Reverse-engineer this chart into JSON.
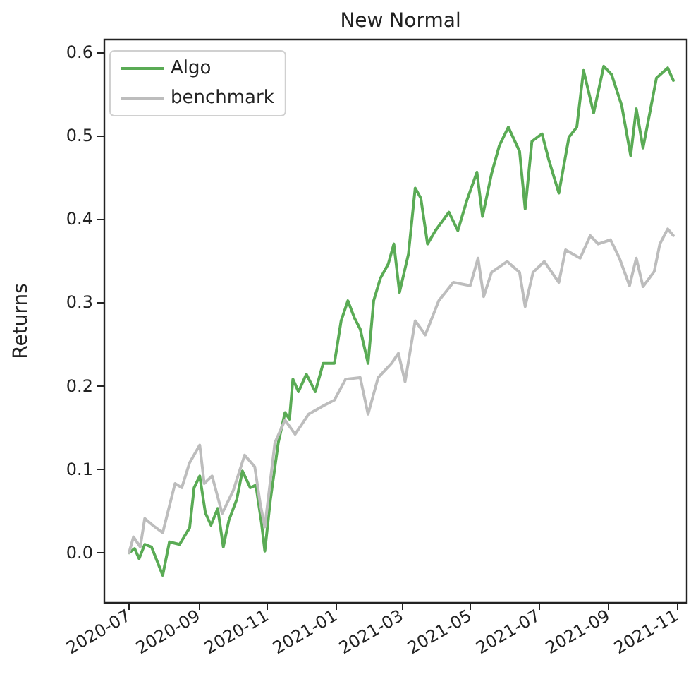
{
  "chart_data": {
    "type": "line",
    "title": "New Normal",
    "ylabel": "Returns",
    "xlim": [
      "2020-06-09",
      "2021-11-10"
    ],
    "xticks": [
      {
        "value": "2020-07-01",
        "label": "2020-07"
      },
      {
        "value": "2020-09-01",
        "label": "2020-09"
      },
      {
        "value": "2020-11-01",
        "label": "2020-11"
      },
      {
        "value": "2021-01-01",
        "label": "2021-01"
      },
      {
        "value": "2021-03-01",
        "label": "2021-03"
      },
      {
        "value": "2021-05-01",
        "label": "2021-05"
      },
      {
        "value": "2021-07-01",
        "label": "2021-07"
      },
      {
        "value": "2021-09-01",
        "label": "2021-09"
      },
      {
        "value": "2021-11-01",
        "label": "2021-11"
      }
    ],
    "ylim": [
      -0.06,
      0.615
    ],
    "yticks": [
      {
        "value": 0,
        "label": "0.0"
      },
      {
        "value": 0.1,
        "label": "0.1"
      },
      {
        "value": 0.2,
        "label": "0.2"
      },
      {
        "value": 0.3,
        "label": "0.3"
      },
      {
        "value": 0.4,
        "label": "0.4"
      },
      {
        "value": 0.5,
        "label": "0.5"
      },
      {
        "value": 0.6,
        "label": "0.6"
      }
    ],
    "grid": false,
    "legend": "top left",
    "marker": "none",
    "line_style": "solid",
    "series": [
      {
        "name": "Algo",
        "color": "#5aab55",
        "x": [
          "2020-07-01",
          "2020-07-06",
          "2020-07-10",
          "2020-07-15",
          "2020-07-21",
          "2020-07-31",
          "2020-08-06",
          "2020-08-15",
          "2020-08-24",
          "2020-08-28",
          "2020-09-02",
          "2020-09-07",
          "2020-09-12",
          "2020-09-18",
          "2020-09-23",
          "2020-09-28",
          "2020-10-05",
          "2020-10-10",
          "2020-10-17",
          "2020-10-22",
          "2020-10-27",
          "2020-10-30",
          "2020-11-04",
          "2020-11-11",
          "2020-11-17",
          "2020-11-21",
          "2020-11-24",
          "2020-11-29",
          "2020-12-06",
          "2020-12-14",
          "2020-12-21",
          "2020-12-31",
          "2021-01-06",
          "2021-01-12",
          "2021-01-18",
          "2021-01-23",
          "2021-01-30",
          "2021-02-04",
          "2021-02-10",
          "2021-02-17",
          "2021-02-22",
          "2021-02-27",
          "2021-03-07",
          "2021-03-13",
          "2021-03-18",
          "2021-03-24",
          "2021-03-31",
          "2021-04-12",
          "2021-04-20",
          "2021-04-28",
          "2021-05-07",
          "2021-05-12",
          "2021-05-20",
          "2021-05-27",
          "2021-06-04",
          "2021-06-14",
          "2021-06-19",
          "2021-06-25",
          "2021-07-04",
          "2021-07-10",
          "2021-07-19",
          "2021-07-28",
          "2021-08-04",
          "2021-08-10",
          "2021-08-19",
          "2021-08-28",
          "2021-09-04",
          "2021-09-13",
          "2021-09-21",
          "2021-09-26",
          "2021-10-02",
          "2021-10-08",
          "2021-10-14",
          "2021-10-24",
          "2021-10-29"
        ],
        "values": [
          0.0,
          0.005,
          -0.007,
          0.01,
          0.007,
          -0.027,
          0.013,
          0.01,
          0.03,
          0.078,
          0.092,
          0.048,
          0.033,
          0.053,
          0.007,
          0.039,
          0.064,
          0.098,
          0.078,
          0.081,
          0.036,
          0.002,
          0.064,
          0.132,
          0.168,
          0.16,
          0.208,
          0.193,
          0.214,
          0.193,
          0.227,
          0.227,
          0.278,
          0.302,
          0.281,
          0.268,
          0.227,
          0.302,
          0.329,
          0.346,
          0.37,
          0.312,
          0.358,
          0.437,
          0.425,
          0.37,
          0.386,
          0.408,
          0.386,
          0.422,
          0.456,
          0.403,
          0.454,
          0.488,
          0.51,
          0.481,
          0.412,
          0.493,
          0.502,
          0.471,
          0.431,
          0.498,
          0.51,
          0.578,
          0.527,
          0.583,
          0.573,
          0.536,
          0.476,
          0.532,
          0.485,
          0.527,
          0.569,
          0.581,
          0.566
        ]
      },
      {
        "name": "benchmark",
        "color": "#bdbdbd",
        "x": [
          "2020-07-01",
          "2020-07-05",
          "2020-07-11",
          "2020-07-15",
          "2020-07-23",
          "2020-07-31",
          "2020-08-11",
          "2020-08-17",
          "2020-08-24",
          "2020-09-02",
          "2020-09-06",
          "2020-09-13",
          "2020-09-22",
          "2020-10-02",
          "2020-10-12",
          "2020-10-21",
          "2020-10-26",
          "2020-10-30",
          "2020-11-08",
          "2020-11-17",
          "2020-11-26",
          "2020-12-08",
          "2020-12-21",
          "2020-12-31",
          "2021-01-10",
          "2021-01-23",
          "2021-01-30",
          "2021-02-08",
          "2021-02-20",
          "2021-02-26",
          "2021-03-04",
          "2021-03-13",
          "2021-03-22",
          "2021-04-03",
          "2021-04-16",
          "2021-05-01",
          "2021-05-08",
          "2021-05-13",
          "2021-05-20",
          "2021-06-03",
          "2021-06-14",
          "2021-06-19",
          "2021-06-26",
          "2021-07-06",
          "2021-07-19",
          "2021-07-25",
          "2021-08-07",
          "2021-08-16",
          "2021-08-23",
          "2021-09-03",
          "2021-09-11",
          "2021-09-20",
          "2021-09-26",
          "2021-10-02",
          "2021-10-12",
          "2021-10-17",
          "2021-10-24",
          "2021-10-29"
        ],
        "values": [
          0.0,
          0.019,
          0.007,
          0.041,
          0.032,
          0.024,
          0.083,
          0.078,
          0.108,
          0.129,
          0.083,
          0.092,
          0.047,
          0.075,
          0.117,
          0.103,
          0.058,
          0.031,
          0.132,
          0.159,
          0.142,
          0.166,
          0.176,
          0.183,
          0.208,
          0.21,
          0.166,
          0.21,
          0.227,
          0.239,
          0.205,
          0.278,
          0.261,
          0.302,
          0.324,
          0.32,
          0.353,
          0.307,
          0.336,
          0.349,
          0.336,
          0.295,
          0.336,
          0.349,
          0.324,
          0.363,
          0.353,
          0.38,
          0.37,
          0.375,
          0.353,
          0.32,
          0.353,
          0.319,
          0.337,
          0.37,
          0.388,
          0.38
        ]
      }
    ]
  }
}
